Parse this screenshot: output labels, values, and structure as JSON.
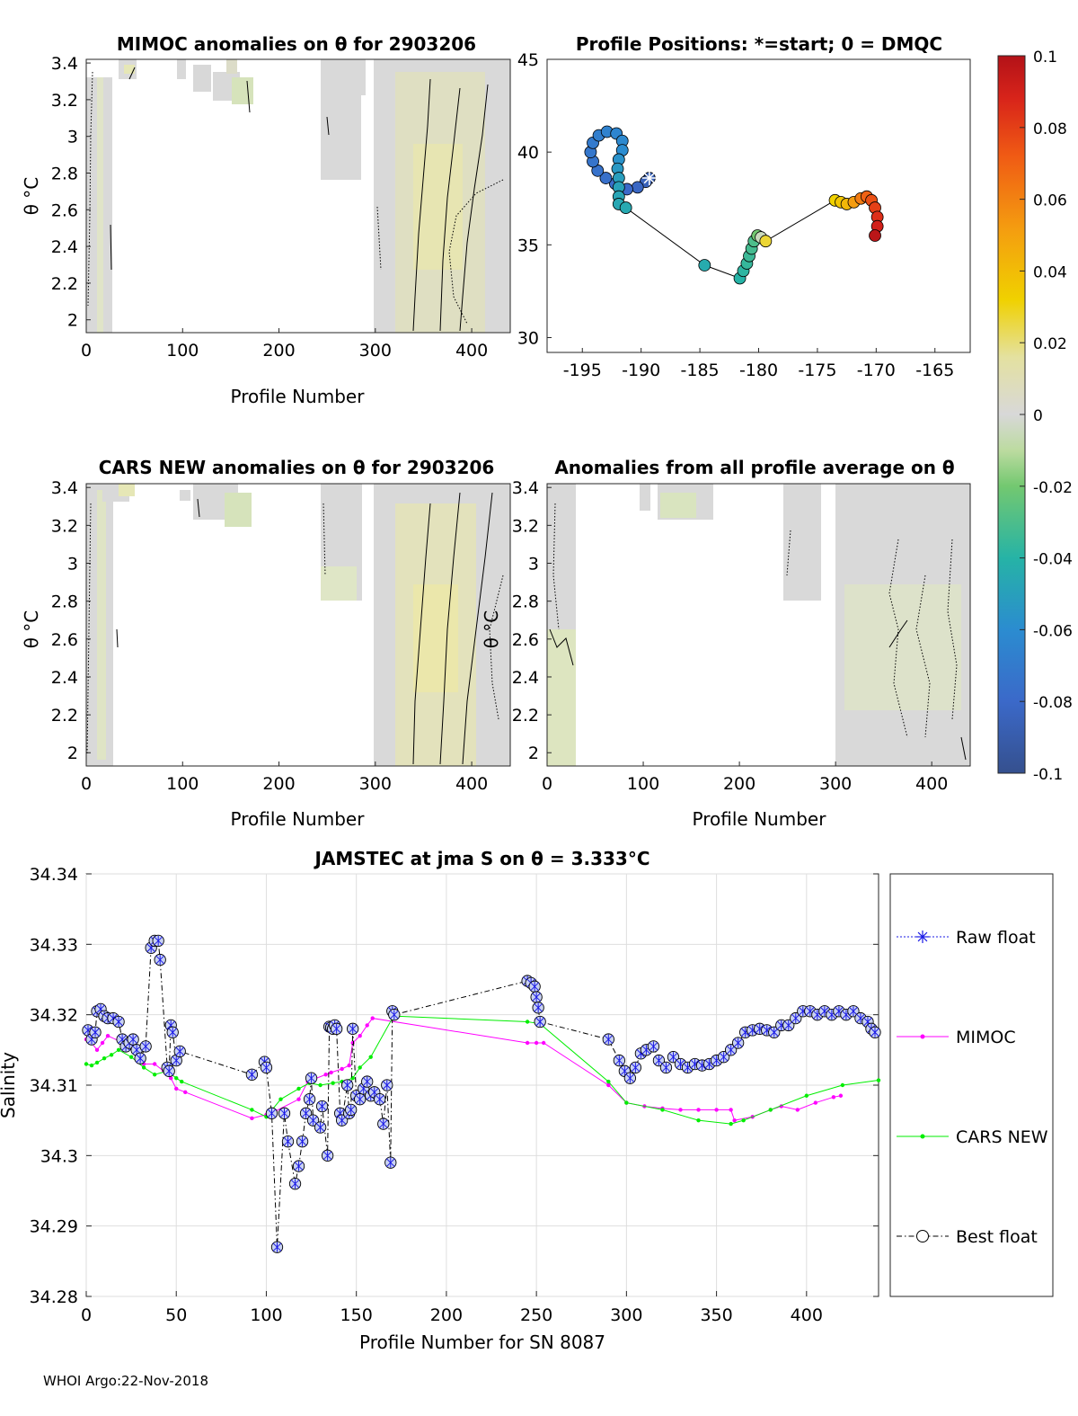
{
  "chart_data": [
    {
      "type": "heatmap",
      "id": "mimoc",
      "title": "MIMOC anomalies on θ  for 2903206",
      "xlabel": "Profile Number",
      "ylabel": "θ °C",
      "xlim": [
        0,
        440
      ],
      "ylim": [
        1.93,
        3.42
      ],
      "xticks": [
        0,
        100,
        200,
        300,
        400
      ],
      "yticks": [
        2,
        2.2,
        2.4,
        2.6,
        2.8,
        3,
        3.2,
        3.4
      ]
    },
    {
      "type": "scatter",
      "id": "positions",
      "title": "Profile Positions: *=start; 0 = DMQC",
      "xlim": [
        -198,
        -162
      ],
      "ylim": [
        29.2,
        45
      ],
      "xticks": [
        -195,
        -190,
        -185,
        -180,
        -175,
        -170,
        -165
      ],
      "yticks": [
        30,
        35,
        40,
        45
      ],
      "points": [
        {
          "lon": -189.3,
          "lat": 38.6,
          "v": -0.085
        },
        {
          "lon": -189.6,
          "lat": 38.4,
          "v": -0.085
        },
        {
          "lon": -190.3,
          "lat": 38.1,
          "v": -0.082
        },
        {
          "lon": -191.2,
          "lat": 38.0,
          "v": -0.08
        },
        {
          "lon": -192.2,
          "lat": 38.3,
          "v": -0.078
        },
        {
          "lon": -193.0,
          "lat": 38.6,
          "v": -0.076
        },
        {
          "lon": -193.7,
          "lat": 39.0,
          "v": -0.075
        },
        {
          "lon": -194.1,
          "lat": 39.5,
          "v": -0.074
        },
        {
          "lon": -194.3,
          "lat": 40.0,
          "v": -0.072
        },
        {
          "lon": -194.1,
          "lat": 40.5,
          "v": -0.07
        },
        {
          "lon": -193.6,
          "lat": 40.9,
          "v": -0.068
        },
        {
          "lon": -192.9,
          "lat": 41.1,
          "v": -0.066
        },
        {
          "lon": -192.1,
          "lat": 41.0,
          "v": -0.064
        },
        {
          "lon": -191.6,
          "lat": 40.6,
          "v": -0.062
        },
        {
          "lon": -191.6,
          "lat": 40.1,
          "v": -0.06
        },
        {
          "lon": -191.9,
          "lat": 39.6,
          "v": -0.057
        },
        {
          "lon": -192.0,
          "lat": 39.1,
          "v": -0.054
        },
        {
          "lon": -191.9,
          "lat": 38.6,
          "v": -0.051
        },
        {
          "lon": -191.9,
          "lat": 38.1,
          "v": -0.049
        },
        {
          "lon": -191.9,
          "lat": 37.6,
          "v": -0.047
        },
        {
          "lon": -191.9,
          "lat": 37.2,
          "v": -0.046
        },
        {
          "lon": -191.3,
          "lat": 37.0,
          "v": -0.045
        },
        {
          "lon": -184.6,
          "lat": 33.9,
          "v": -0.044
        },
        {
          "lon": -181.6,
          "lat": 33.2,
          "v": -0.04
        },
        {
          "lon": -181.3,
          "lat": 33.6,
          "v": -0.038
        },
        {
          "lon": -181.0,
          "lat": 34.0,
          "v": -0.036
        },
        {
          "lon": -180.8,
          "lat": 34.4,
          "v": -0.034
        },
        {
          "lon": -180.6,
          "lat": 34.8,
          "v": -0.032
        },
        {
          "lon": -180.4,
          "lat": 35.2,
          "v": -0.03
        },
        {
          "lon": -180.1,
          "lat": 35.5,
          "v": -0.02
        },
        {
          "lon": -179.8,
          "lat": 35.4,
          "v": -0.005
        },
        {
          "lon": -179.4,
          "lat": 35.2,
          "v": 0.025
        },
        {
          "lon": -173.5,
          "lat": 37.4,
          "v": 0.03
        },
        {
          "lon": -173.0,
          "lat": 37.3,
          "v": 0.034
        },
        {
          "lon": -172.5,
          "lat": 37.2,
          "v": 0.04
        },
        {
          "lon": -171.9,
          "lat": 37.3,
          "v": 0.05
        },
        {
          "lon": -171.3,
          "lat": 37.5,
          "v": 0.06
        },
        {
          "lon": -170.8,
          "lat": 37.6,
          "v": 0.068
        },
        {
          "lon": -170.4,
          "lat": 37.4,
          "v": 0.074
        },
        {
          "lon": -170.1,
          "lat": 37.0,
          "v": 0.08
        },
        {
          "lon": -169.9,
          "lat": 36.5,
          "v": 0.086
        },
        {
          "lon": -169.9,
          "lat": 36.0,
          "v": 0.092
        },
        {
          "lon": -170.1,
          "lat": 35.5,
          "v": 0.098
        }
      ]
    },
    {
      "type": "heatmap",
      "id": "colorbar",
      "ticks": [
        "0.1",
        "0.08",
        "0.06",
        "0.04",
        "0.02",
        "0",
        "-0.02",
        "-0.04",
        "-0.06",
        "-0.08",
        "-0.1"
      ],
      "range": [
        -0.1,
        0.1
      ]
    },
    {
      "type": "heatmap",
      "id": "cars",
      "title": "CARS NEW anomalies on θ for 2903206",
      "xlabel": "Profile Number",
      "ylabel": "θ °C",
      "xlim": [
        0,
        440
      ],
      "ylim": [
        1.93,
        3.42
      ],
      "xticks": [
        0,
        100,
        200,
        300,
        400
      ],
      "yticks": [
        2,
        2.2,
        2.4,
        2.6,
        2.8,
        3,
        3.2,
        3.4
      ]
    },
    {
      "type": "heatmap",
      "id": "avg",
      "title": "Anomalies from all profile average on θ",
      "xlabel": "Profile Number",
      "ylabel": "θ °C",
      "xlim": [
        0,
        440
      ],
      "ylim": [
        1.93,
        3.42
      ],
      "xticks": [
        0,
        100,
        200,
        300,
        400
      ],
      "yticks": [
        2,
        2.2,
        2.4,
        2.6,
        2.8,
        3,
        3.2,
        3.4
      ]
    },
    {
      "type": "line",
      "id": "salinity",
      "title": "JAMSTEC at jma S on θ = 3.333°C",
      "xlabel": "Profile Number for SN 8087",
      "ylabel": "Salinity",
      "xlim": [
        0,
        440
      ],
      "ylim": [
        34.28,
        34.34
      ],
      "xticks": [
        0,
        50,
        100,
        150,
        200,
        250,
        300,
        350,
        400
      ],
      "yticks": [
        34.28,
        34.29,
        34.3,
        34.31,
        34.32,
        34.33,
        34.34
      ],
      "grid": true,
      "legend": [
        "Raw float",
        "MIMOC",
        "CARS NEW",
        "Best float"
      ],
      "series": [
        {
          "name": "Best float",
          "x": [
            1,
            3,
            5,
            6,
            8,
            10,
            12,
            15,
            18,
            20,
            22,
            24,
            26,
            28,
            30,
            33,
            36,
            38,
            40,
            41,
            45,
            46,
            47,
            48,
            50,
            52,
            92,
            99,
            100,
            103,
            106,
            110,
            112,
            116,
            118,
            120,
            122,
            124,
            125,
            126,
            130,
            131,
            134,
            135,
            136,
            137,
            138,
            139,
            141,
            142,
            145,
            146,
            147,
            148,
            150,
            152,
            154,
            156,
            158,
            160,
            163,
            165,
            167,
            169,
            170,
            171,
            245,
            247,
            249,
            250,
            251,
            252,
            290,
            296,
            299,
            302,
            305,
            308,
            311,
            315,
            318,
            322,
            326,
            330,
            334,
            338,
            342,
            346,
            350,
            354,
            358,
            362,
            366,
            370,
            374,
            378,
            382,
            386,
            390,
            394,
            398,
            402,
            406,
            410,
            414,
            418,
            422,
            426,
            430,
            434,
            436,
            438
          ],
          "y": [
            34.3178,
            34.3165,
            34.3175,
            34.3205,
            34.3208,
            34.3198,
            34.3195,
            34.3195,
            34.319,
            34.3165,
            34.3155,
            34.316,
            34.3165,
            34.315,
            34.3138,
            34.3155,
            34.3295,
            34.3305,
            34.3305,
            34.3278,
            34.3125,
            34.312,
            34.3185,
            34.3175,
            34.3135,
            34.3148,
            34.3115,
            34.3133,
            34.3125,
            34.306,
            34.287,
            34.306,
            34.302,
            34.296,
            34.2985,
            34.302,
            34.306,
            34.308,
            34.311,
            34.305,
            34.304,
            34.307,
            34.3,
            34.3183,
            34.3182,
            34.318,
            34.3185,
            34.318,
            34.306,
            34.305,
            34.31,
            34.306,
            34.3065,
            34.318,
            34.3085,
            34.308,
            34.3095,
            34.3105,
            34.3085,
            34.309,
            34.308,
            34.3045,
            34.31,
            34.299,
            34.3205,
            34.32,
            34.3248,
            34.3245,
            34.324,
            34.3225,
            34.321,
            34.319,
            34.3165,
            34.3135,
            34.312,
            34.311,
            34.3125,
            34.3145,
            34.315,
            34.3155,
            34.3135,
            34.3125,
            34.314,
            34.313,
            34.3125,
            34.313,
            34.3128,
            34.313,
            34.3135,
            34.314,
            34.315,
            34.316,
            34.3175,
            34.3178,
            34.318,
            34.3178,
            34.3175,
            34.3185,
            34.3185,
            34.3195,
            34.3205,
            34.3205,
            34.32,
            34.3205,
            34.32,
            34.3205,
            34.32,
            34.3205,
            34.3195,
            34.319,
            34.318,
            34.3175
          ]
        },
        {
          "name": "MIMOC",
          "x": [
            0,
            3,
            6,
            9,
            12,
            25,
            32,
            38,
            43,
            47,
            50,
            55,
            92,
            100,
            105,
            118,
            123,
            133,
            136,
            142,
            146,
            148,
            152,
            156,
            159,
            245,
            250,
            254,
            290,
            300,
            310,
            320,
            330,
            340,
            350,
            358,
            360,
            370,
            380,
            386,
            395,
            405,
            415,
            419
          ],
          "y": [
            34.3165,
            34.316,
            34.315,
            34.316,
            34.317,
            34.3155,
            34.313,
            34.313,
            34.312,
            34.311,
            34.3095,
            34.309,
            34.3053,
            34.3058,
            34.3063,
            34.308,
            34.3105,
            34.3115,
            34.3118,
            34.3123,
            34.3128,
            34.316,
            34.317,
            34.3185,
            34.3195,
            34.316,
            34.316,
            34.316,
            34.31,
            34.3075,
            34.307,
            34.3067,
            34.3065,
            34.3065,
            34.3065,
            34.3065,
            34.305,
            34.3055,
            34.3065,
            34.307,
            34.3065,
            34.3075,
            34.3083,
            34.3085
          ]
        },
        {
          "name": "CARS NEW",
          "x": [
            0,
            3,
            6,
            10,
            14,
            18,
            25,
            32,
            38,
            45,
            50,
            53,
            92,
            100,
            108,
            118,
            124,
            130,
            137,
            142,
            148,
            152,
            158,
            170,
            172,
            245,
            250,
            253,
            290,
            300,
            320,
            340,
            358,
            365,
            380,
            400,
            420,
            440
          ],
          "y": [
            34.313,
            34.3128,
            34.3132,
            34.3138,
            34.3143,
            34.315,
            34.314,
            34.3125,
            34.3115,
            34.312,
            34.311,
            34.3105,
            34.3065,
            34.3055,
            34.308,
            34.3095,
            34.3103,
            34.31,
            34.3103,
            34.3105,
            34.311,
            34.3125,
            34.314,
            34.3195,
            34.3198,
            34.319,
            34.3188,
            34.3185,
            34.3105,
            34.3075,
            34.3065,
            34.305,
            34.3045,
            34.305,
            34.3065,
            34.3085,
            34.31,
            34.3107
          ]
        }
      ]
    }
  ],
  "footer": "WHOI Argo:22-Nov-2018"
}
